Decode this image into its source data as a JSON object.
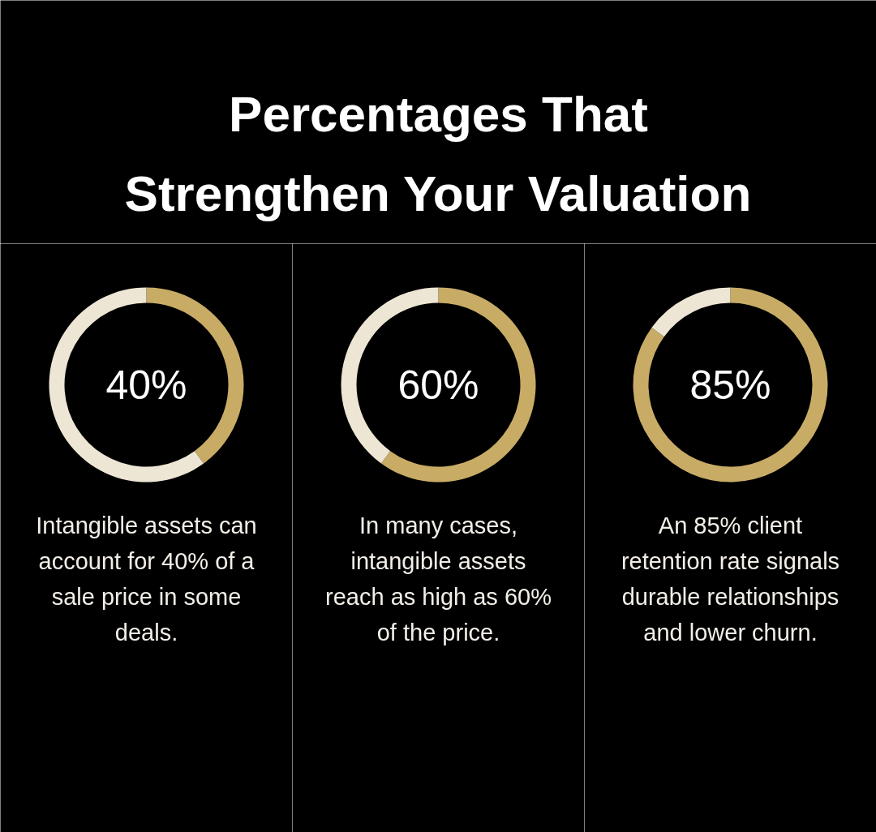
{
  "chart_data": [
    {
      "type": "donut",
      "title": "Percentages That Strengthen Your Valuation",
      "categories": [
        null,
        null
      ],
      "values": [
        40,
        60
      ],
      "colors": [
        "#c8ac66",
        "#eee6d4"
      ],
      "annotations": [
        "40%",
        "Intangible assets can account for 40% of a sale price in some deals."
      ]
    },
    {
      "type": "donut",
      "categories": [
        null,
        null
      ],
      "values": [
        60,
        40
      ],
      "colors": [
        "#c8ac66",
        "#eee6d4"
      ],
      "annotations": [
        "60%",
        "In many cases, intangible assets reach as high as 60% of the price."
      ]
    },
    {
      "type": "donut",
      "categories": [
        null,
        null
      ],
      "values": [
        85,
        15
      ],
      "colors": [
        "#c8ac66",
        "#eee6d4"
      ],
      "annotations": [
        "85%",
        "An 85% client retention rate signals durable relationships and lower churn."
      ]
    }
  ]
}
